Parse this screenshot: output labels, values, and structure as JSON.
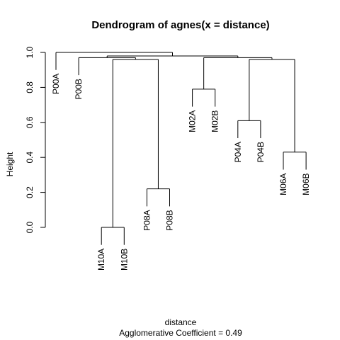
{
  "chart_data": {
    "type": "dendrogram",
    "title": "Dendrogram of  agnes(x = distance)",
    "ylabel": "Height",
    "xlabel": "distance",
    "subtitle": "Agglomerative Coefficient =  0.49",
    "ylim": [
      0,
      1
    ],
    "yticks": [
      "0.0",
      "0.2",
      "0.4",
      "0.6",
      "0.8",
      "1.0"
    ],
    "leaves": [
      "P00A",
      "P00B",
      "M10A",
      "M10B",
      "P08A",
      "P08B",
      "M02A",
      "M02B",
      "P04A",
      "P04B",
      "M06A",
      "M06B"
    ],
    "merges": [
      {
        "a": [
          "leaf",
          2
        ],
        "b": [
          "leaf",
          3
        ],
        "height": 0.0
      },
      {
        "a": [
          "leaf",
          4
        ],
        "b": [
          "leaf",
          5
        ],
        "height": 0.22
      },
      {
        "a": [
          "leaf",
          10
        ],
        "b": [
          "leaf",
          11
        ],
        "height": 0.43
      },
      {
        "a": [
          "leaf",
          8
        ],
        "b": [
          "leaf",
          9
        ],
        "height": 0.61
      },
      {
        "a": [
          "leaf",
          6
        ],
        "b": [
          "leaf",
          7
        ],
        "height": 0.79
      },
      {
        "a": [
          "merge",
          0
        ],
        "b": [
          "merge",
          1
        ],
        "height": 0.96
      },
      {
        "a": [
          "merge",
          3
        ],
        "b": [
          "merge",
          2
        ],
        "height": 0.96
      },
      {
        "a": [
          "leaf",
          1
        ],
        "b": [
          "merge",
          5
        ],
        "height": 0.97
      },
      {
        "a": [
          "merge",
          4
        ],
        "b": [
          "merge",
          6
        ],
        "height": 0.97
      },
      {
        "a": [
          "merge",
          7
        ],
        "b": [
          "merge",
          8
        ],
        "height": 0.98
      },
      {
        "a": [
          "leaf",
          0
        ],
        "b": [
          "merge",
          9
        ],
        "height": 1.0
      }
    ]
  }
}
